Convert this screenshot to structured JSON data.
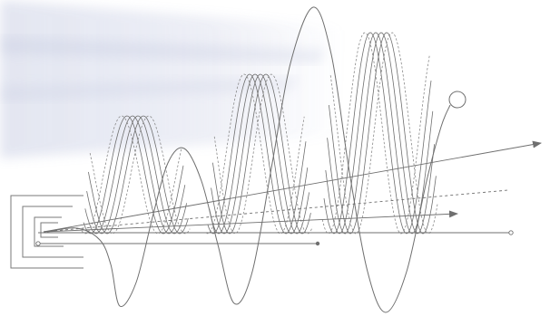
{
  "diagram": {
    "stroke_color": "#6f6f6f",
    "dashed_color": "#8a8a8a",
    "haze_color": "#c7cde3",
    "background_color": "#ffffff",
    "elements": [
      "wave-cluster-small",
      "wave-cluster-medium",
      "wave-cluster-large",
      "large-oscillation",
      "arrow-rays",
      "nested-bracket-emitter",
      "circle-endpoint"
    ]
  }
}
